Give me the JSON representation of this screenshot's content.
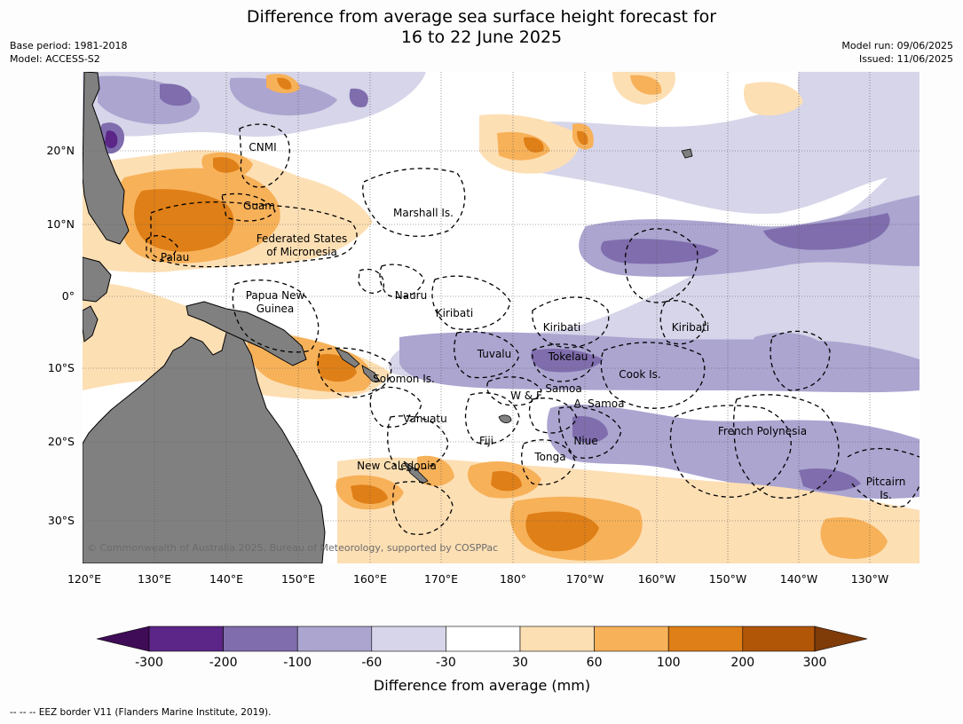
{
  "title": {
    "line1": "Difference from average sea surface height forecast for",
    "line2": "16 to 22 June 2025"
  },
  "meta_left": {
    "base_period": "Base period: 1981-2018",
    "model": "Model: ACCESS-S2"
  },
  "meta_right": {
    "model_run": "Model run: 09/06/2025",
    "issued": "Issued: 11/06/2025"
  },
  "map": {
    "lat_labels": [
      "20°N",
      "10°N",
      "0°",
      "10°S",
      "20°S",
      "30°S"
    ],
    "lon_labels": [
      "120°E",
      "130°E",
      "140°E",
      "150°E",
      "160°E",
      "170°E",
      "180°",
      "170°W",
      "160°W",
      "150°W",
      "140°W",
      "130°W"
    ],
    "region_labels": [
      "CNMI",
      "Guam",
      "Marshall Is.",
      "Federated States",
      "of Micronesia",
      "Palau",
      "Nauru",
      "Papua New",
      "Guinea",
      "Kiribati",
      "Kiribati",
      "Kiribati",
      "Tuvalu",
      "Tokelau",
      "Cook Is.",
      "Solomon Is.",
      "Samoa",
      "W & F",
      "A. Samoa",
      "Vanuatu",
      "Fiji",
      "Niue",
      "Tonga",
      "New Caledonia",
      "French Polynesia",
      "Pitcairn",
      "Is."
    ],
    "copyright": "© Commonwealth of Australia 2025, Bureau of Meteorology, supported by COSPPac",
    "colors": {
      "land": "#808080",
      "ocean_neutral": "#ffffff",
      "eez_border": "#000000"
    }
  },
  "colorbar": {
    "ticks": [
      "-300",
      "-200",
      "-100",
      "-60",
      "-30",
      "30",
      "60",
      "100",
      "200",
      "300"
    ],
    "colors": [
      "#3f0c57",
      "#5b2688",
      "#7f6dad",
      "#aba5d0",
      "#d6d5e9",
      "#ffffff",
      "#fddfb4",
      "#f7b159",
      "#df7f17",
      "#b15507",
      "#7f3b08"
    ],
    "label": "Difference from average (mm)"
  },
  "footer": "--  --  -- EEZ border V11 (Flanders Marine Institute, 2019)."
}
